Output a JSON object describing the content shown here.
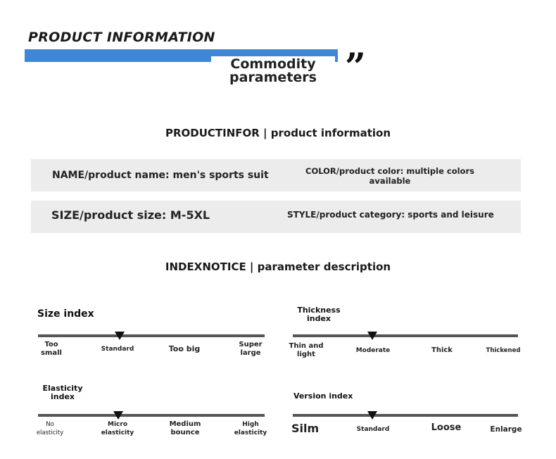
{
  "header": {
    "title": "PRODUCT INFORMATION",
    "subtitle_line1": "Commodity",
    "subtitle_line2": "parameters",
    "quote_mark": "”"
  },
  "product_info": {
    "heading": "PRODUCTINFOR | product information",
    "name": "NAME/product name: men's sports suit",
    "color": "COLOR/product color: multiple colors available",
    "size": "SIZE/product size: M-5XL",
    "style": "STYLE/product category: sports and leisure"
  },
  "parameters": {
    "heading": "INDEXNOTICE | parameter description",
    "size_index": {
      "title": "Size index",
      "labels": [
        "Too small",
        "Standard",
        "Too big",
        "Super large"
      ],
      "selected": "Standard"
    },
    "thickness_index": {
      "title": "Thickness index",
      "labels": [
        "Thin and light",
        "Moderate",
        "Thick",
        "Thickened"
      ],
      "selected": "Moderate"
    },
    "elasticity_index": {
      "title": "Elasticity index",
      "labels": [
        "No elasticity",
        "Micro elasticity",
        "Medium bounce",
        "High elasticity"
      ],
      "selected": "Micro elasticity"
    },
    "version_index": {
      "title": "Version index",
      "labels": [
        "Silm",
        "Standard",
        "Loose",
        "Enlarge"
      ],
      "selected": "Standard"
    }
  },
  "colors": {
    "accent_bar": "#3f87d5",
    "row_background": "#ececec",
    "track": "#555555"
  }
}
